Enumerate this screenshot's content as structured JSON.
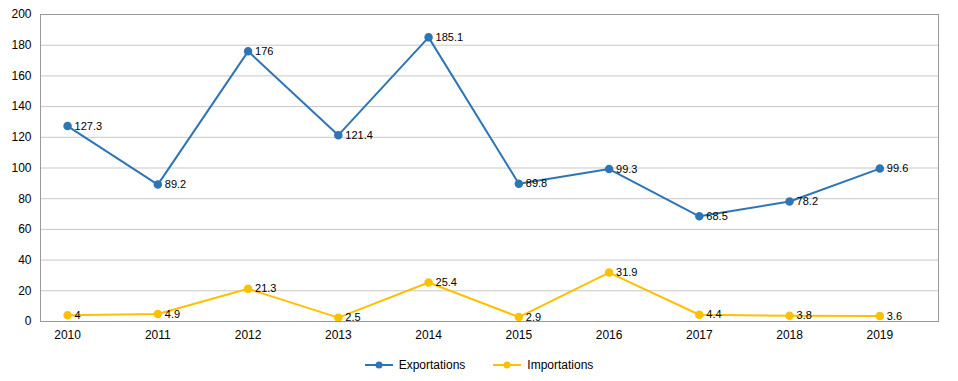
{
  "chart_data": {
    "type": "line",
    "x": [
      2010,
      2011,
      2012,
      2013,
      2014,
      2015,
      2016,
      2017,
      2018,
      2019
    ],
    "series": [
      {
        "name": "Exportations",
        "color": "#2E75B6",
        "values": [
          127.3,
          89.2,
          176,
          121.4,
          185.1,
          89.8,
          99.3,
          68.5,
          78.2,
          99.6
        ]
      },
      {
        "name": "Importations",
        "color": "#FFC000",
        "values": [
          4,
          4.9,
          21.3,
          2.5,
          25.4,
          2.9,
          31.9,
          4.4,
          3.8,
          3.6
        ]
      }
    ],
    "xlim": [
      2009.7,
      2019.65
    ],
    "xticks": [
      2010,
      2011,
      2012,
      2013,
      2014,
      2015,
      2016,
      2017,
      2018,
      2019
    ],
    "ylim": [
      0,
      200
    ],
    "yticks": [
      0,
      20,
      40,
      60,
      80,
      100,
      120,
      140,
      160,
      180,
      200
    ],
    "grid": true,
    "legend": "bottom",
    "marker": "circle",
    "line_style": "solid",
    "data_labels": true
  }
}
